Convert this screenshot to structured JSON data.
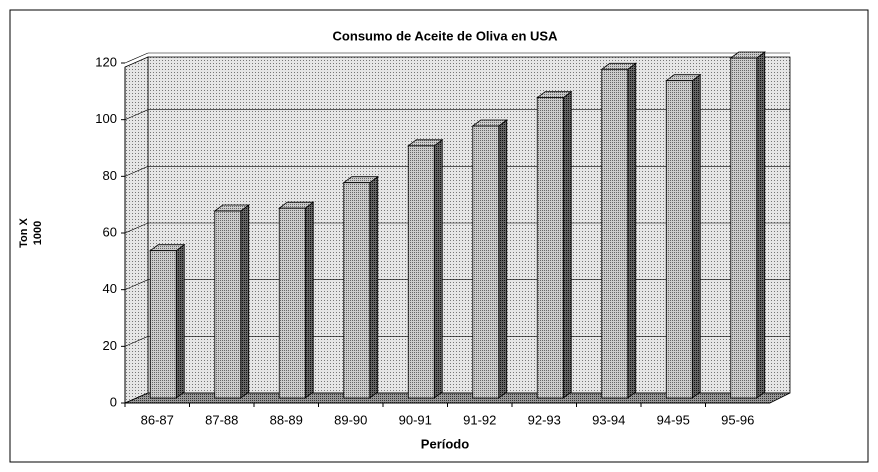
{
  "chart_data": {
    "type": "bar3d",
    "title": "Consumo de Aceite de Oliva en USA",
    "categories": [
      "86-87",
      "87-88",
      "88-89",
      "89-90",
      "90-91",
      "91-92",
      "92-93",
      "93-94",
      "94-95",
      "95-96"
    ],
    "values": [
      52,
      66,
      67,
      76,
      89,
      96,
      106,
      116,
      112,
      120
    ],
    "xlabel": "Período",
    "ylabel": [
      "Ton X",
      "1000"
    ],
    "ylim": [
      0,
      120
    ],
    "yticks": [
      0,
      20,
      40,
      60,
      80,
      100,
      120
    ],
    "grid": true
  }
}
